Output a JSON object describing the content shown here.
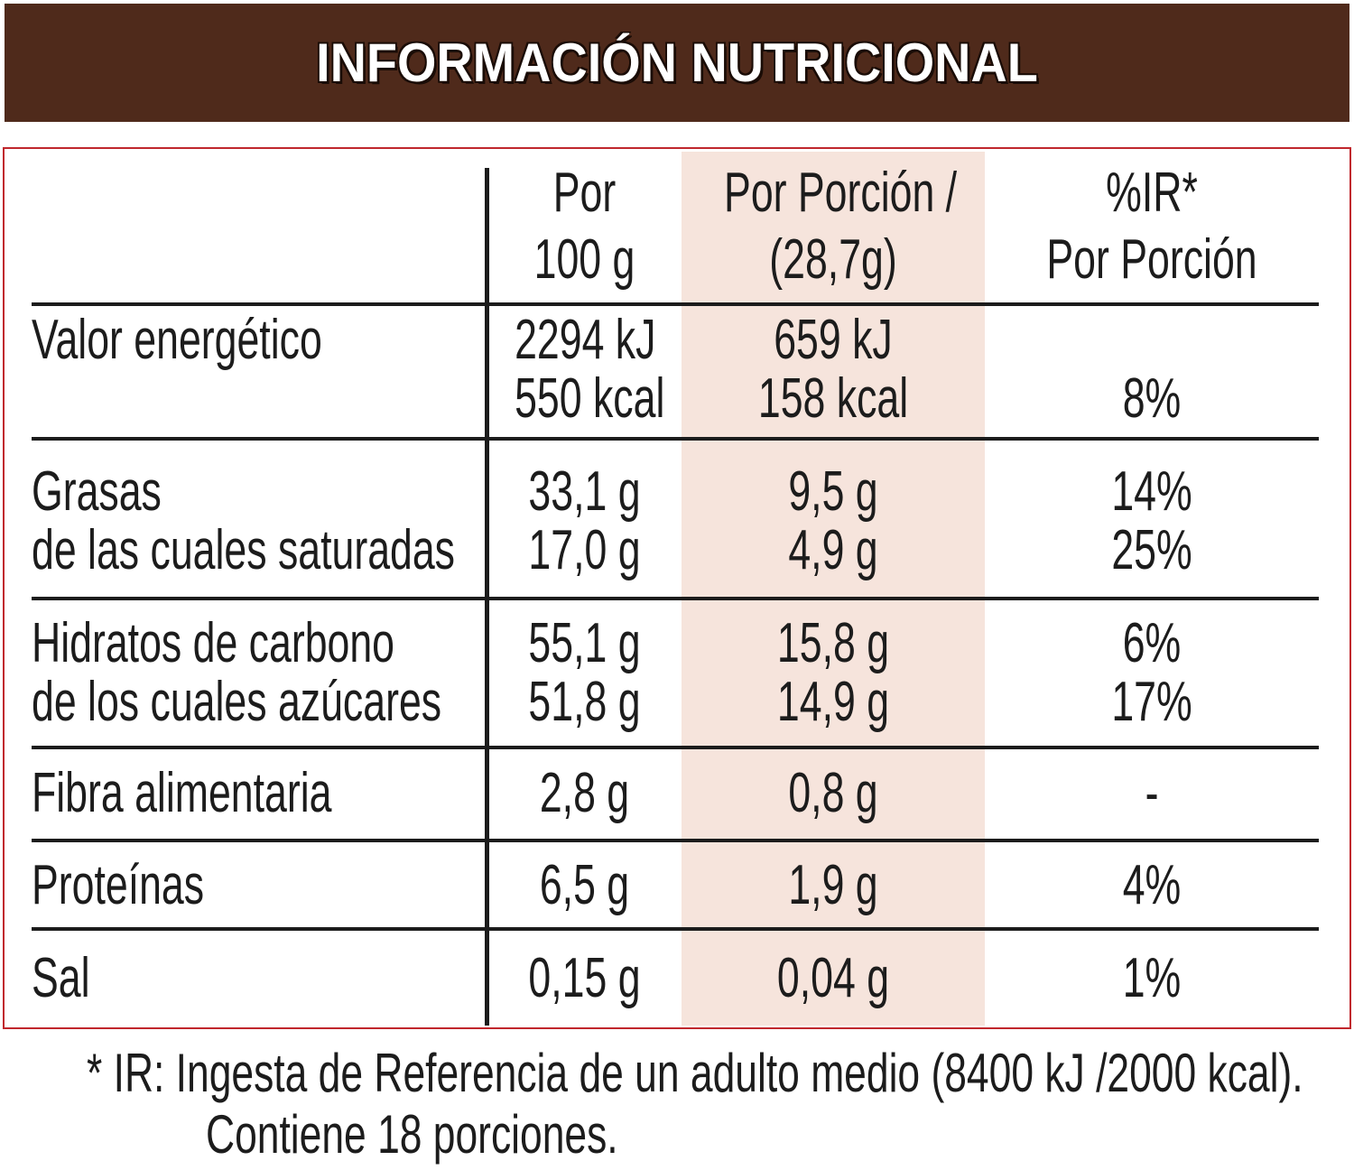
{
  "title": "INFORMACIÓN NUTRICIONAL",
  "headers": {
    "per100_line1": "Por",
    "per100_line2": "100 g",
    "portion_line1": "Por Porción /",
    "portion_line2": "(28,7g)",
    "ir_line1": "%IR*",
    "ir_line2": "Por Porción"
  },
  "rows": [
    {
      "name": "Valor energético",
      "per100": "2294 kJ",
      "portion": "659 kJ",
      "ir": ""
    },
    {
      "name": "",
      "per100": "550 kcal",
      "portion": "158 kcal",
      "ir": "8%"
    },
    {
      "name": "Grasas",
      "per100": "33,1 g",
      "portion": "9,5 g",
      "ir": "14%"
    },
    {
      "name": "de las cuales saturadas",
      "per100": "17,0 g",
      "portion": "4,9 g",
      "ir": "25%"
    },
    {
      "name": "Hidratos de carbono",
      "per100": "55,1 g",
      "portion": "15,8 g",
      "ir": "6%"
    },
    {
      "name": "de los cuales azúcares",
      "per100": "51,8 g",
      "portion": "14,9 g",
      "ir": "17%"
    },
    {
      "name": "Fibra alimentaria",
      "per100": "2,8 g",
      "portion": "0,8 g",
      "ir": "-"
    },
    {
      "name": "Proteínas",
      "per100": "6,5 g",
      "portion": "1,9 g",
      "ir": "4%"
    },
    {
      "name": "Sal",
      "per100": "0,15 g",
      "portion": "0,04 g",
      "ir": "1%"
    }
  ],
  "footnote_line1": "* IR: Ingesta de Referencia de un adulto medio (8400 kJ /2000 kcal).",
  "footnote_line2": "Contiene 18 porciones.",
  "colors": {
    "banner": "#4f2a1b",
    "frame": "#c0272d",
    "portion_column": "#f6e4dc",
    "text": "#1c1c1c"
  }
}
